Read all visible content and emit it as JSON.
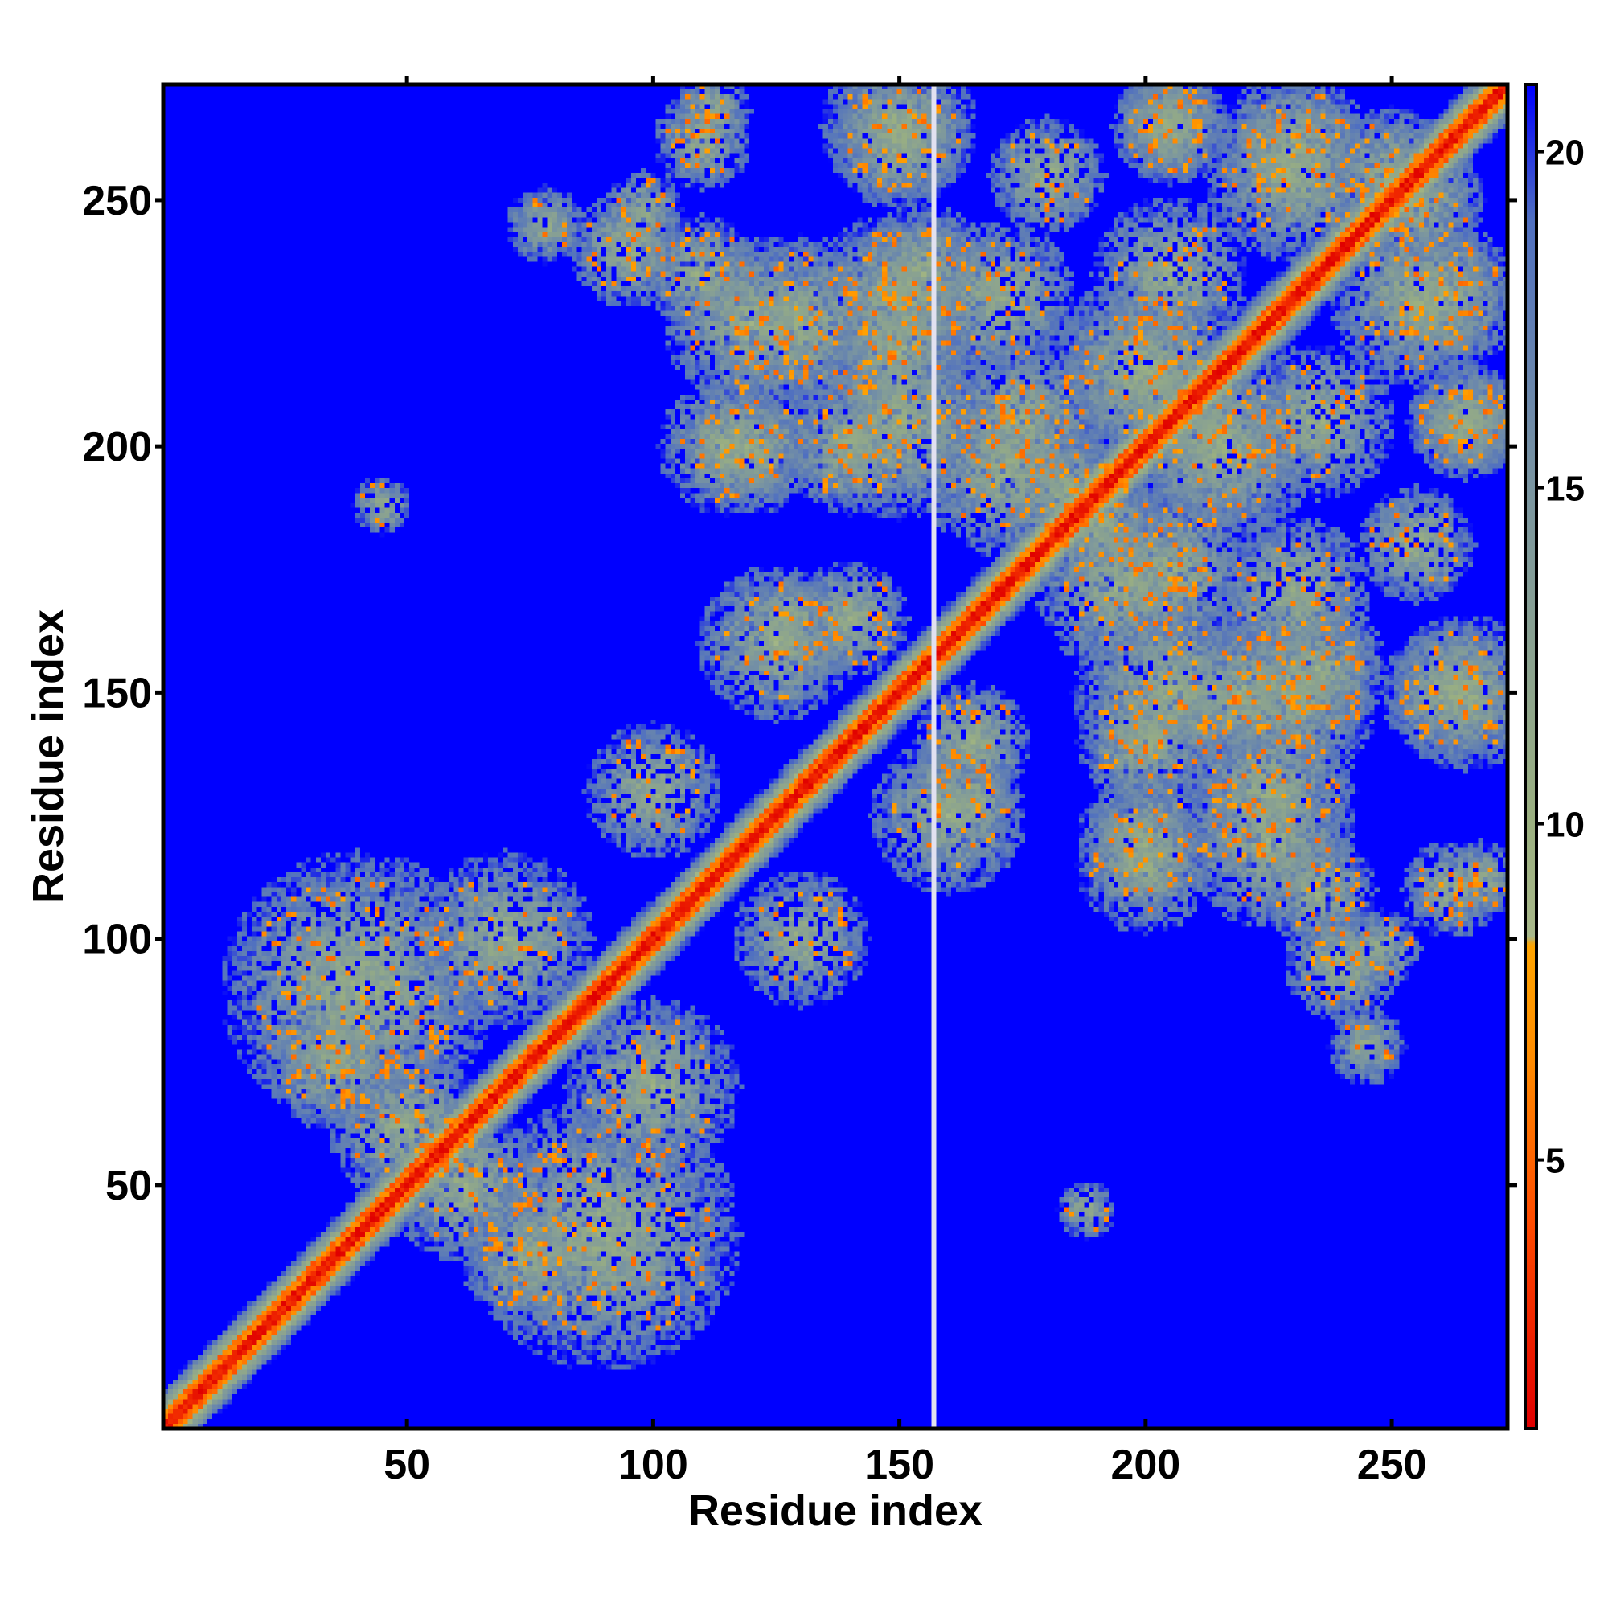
{
  "chart_data": {
    "type": "heatmap",
    "title": "",
    "xlabel": "Residue index",
    "ylabel": "Residue index",
    "n_residues": 273,
    "xlim": [
      1,
      273
    ],
    "ylim": [
      1,
      273
    ],
    "xticks": [
      50,
      100,
      150,
      200,
      250
    ],
    "yticks": [
      50,
      100,
      150,
      200,
      250
    ],
    "xtick_labels": [
      "50",
      "100",
      "150",
      "200",
      "250"
    ],
    "ytick_labels": [
      "50",
      "100",
      "150",
      "200",
      "250"
    ],
    "colorbar": {
      "range": [
        1,
        21
      ],
      "ticks": [
        5,
        10,
        15,
        20
      ],
      "tick_labels": [
        "5",
        "10",
        "15",
        "20"
      ],
      "color_stops": [
        {
          "value": 1,
          "color": "#e00000"
        },
        {
          "value": 4,
          "color": "#ff4a00"
        },
        {
          "value": 6.5,
          "color": "#ff8c00"
        },
        {
          "value": 8.2,
          "color": "#ffa500"
        },
        {
          "value": 8.3,
          "color": "#a8b88a"
        },
        {
          "value": 10,
          "color": "#9bb080"
        },
        {
          "value": 15,
          "color": "#7a95a0"
        },
        {
          "value": 19,
          "color": "#5070c0"
        },
        {
          "value": 21,
          "color": "#0000ff"
        }
      ]
    },
    "background_value": 21,
    "colors": {
      "background": "#0000ff",
      "diagonal": "#e00000",
      "contact": "#ffa500",
      "near": "#9bb080"
    },
    "gap_column": 157,
    "diagonal_band_width": 8,
    "contact_blobs": [
      {
        "i": 40,
        "j": 90,
        "r": 28
      },
      {
        "i": 35,
        "j": 75,
        "r": 14
      },
      {
        "i": 70,
        "j": 100,
        "r": 18
      },
      {
        "i": 50,
        "j": 62,
        "r": 16
      },
      {
        "i": 100,
        "j": 130,
        "r": 14
      },
      {
        "i": 45,
        "j": 188,
        "r": 6
      },
      {
        "i": 78,
        "j": 245,
        "r": 6
      },
      {
        "i": 98,
        "j": 248,
        "r": 8
      },
      {
        "i": 112,
        "j": 268,
        "r": 8
      },
      {
        "i": 150,
        "j": 205,
        "r": 20
      },
      {
        "i": 150,
        "j": 230,
        "r": 18
      },
      {
        "i": 150,
        "j": 265,
        "r": 16
      },
      {
        "i": 125,
        "j": 160,
        "r": 16
      },
      {
        "i": 140,
        "j": 165,
        "r": 12
      },
      {
        "i": 165,
        "j": 128,
        "r": 10
      },
      {
        "i": 130,
        "j": 225,
        "r": 18
      },
      {
        "i": 110,
        "j": 235,
        "r": 12
      },
      {
        "i": 120,
        "j": 200,
        "r": 14
      },
      {
        "i": 175,
        "j": 205,
        "r": 16
      },
      {
        "i": 185,
        "j": 190,
        "r": 14
      },
      {
        "i": 170,
        "j": 230,
        "r": 16
      },
      {
        "i": 195,
        "j": 172,
        "r": 18
      },
      {
        "i": 200,
        "j": 215,
        "r": 20
      },
      {
        "i": 205,
        "j": 235,
        "r": 16
      },
      {
        "i": 205,
        "j": 265,
        "r": 12
      },
      {
        "i": 215,
        "j": 200,
        "r": 16
      },
      {
        "i": 220,
        "j": 150,
        "r": 16
      },
      {
        "i": 225,
        "j": 120,
        "r": 18
      },
      {
        "i": 235,
        "j": 155,
        "r": 14
      },
      {
        "i": 240,
        "j": 95,
        "r": 12
      },
      {
        "i": 245,
        "j": 78,
        "r": 8
      },
      {
        "i": 230,
        "j": 255,
        "r": 18
      },
      {
        "i": 255,
        "j": 250,
        "r": 14
      },
      {
        "i": 260,
        "j": 230,
        "r": 16
      },
      {
        "i": 262,
        "j": 110,
        "r": 10
      },
      {
        "i": 262,
        "j": 150,
        "r": 14
      },
      {
        "i": 265,
        "j": 205,
        "r": 12
      },
      {
        "i": 200,
        "j": 115,
        "r": 14
      },
      {
        "i": 200,
        "j": 140,
        "r": 14
      },
      {
        "i": 180,
        "j": 255,
        "r": 12
      }
    ]
  }
}
